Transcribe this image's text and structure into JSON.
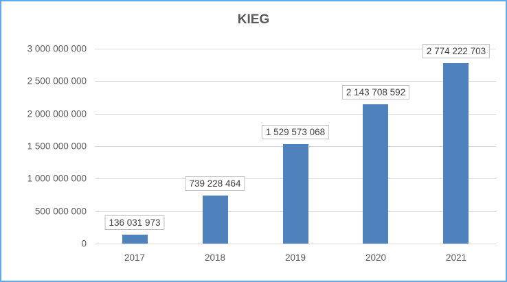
{
  "chart_data": {
    "type": "bar",
    "title": "KIEG",
    "xlabel": "",
    "ylabel": "",
    "categories": [
      "2017",
      "2018",
      "2019",
      "2020",
      "2021"
    ],
    "values": [
      136031973,
      739228464,
      1529573068,
      2143708592,
      2774222703
    ],
    "data_labels": [
      "136 031 973",
      "739 228 464",
      "1 529 573 068",
      "2 143 708 592",
      "2 774 222 703"
    ],
    "ylim": [
      0,
      3000000000
    ],
    "yticks": [
      0,
      500000000,
      1000000000,
      1500000000,
      2000000000,
      2500000000,
      3000000000
    ],
    "ytick_labels": [
      "0",
      "500 000 000",
      "1 000 000 000",
      "1 500 000 000",
      "2 000 000 000",
      "2 500 000 000",
      "3 000 000 000"
    ],
    "grid": true,
    "legend": null,
    "bar_color": "#4f81bd"
  }
}
